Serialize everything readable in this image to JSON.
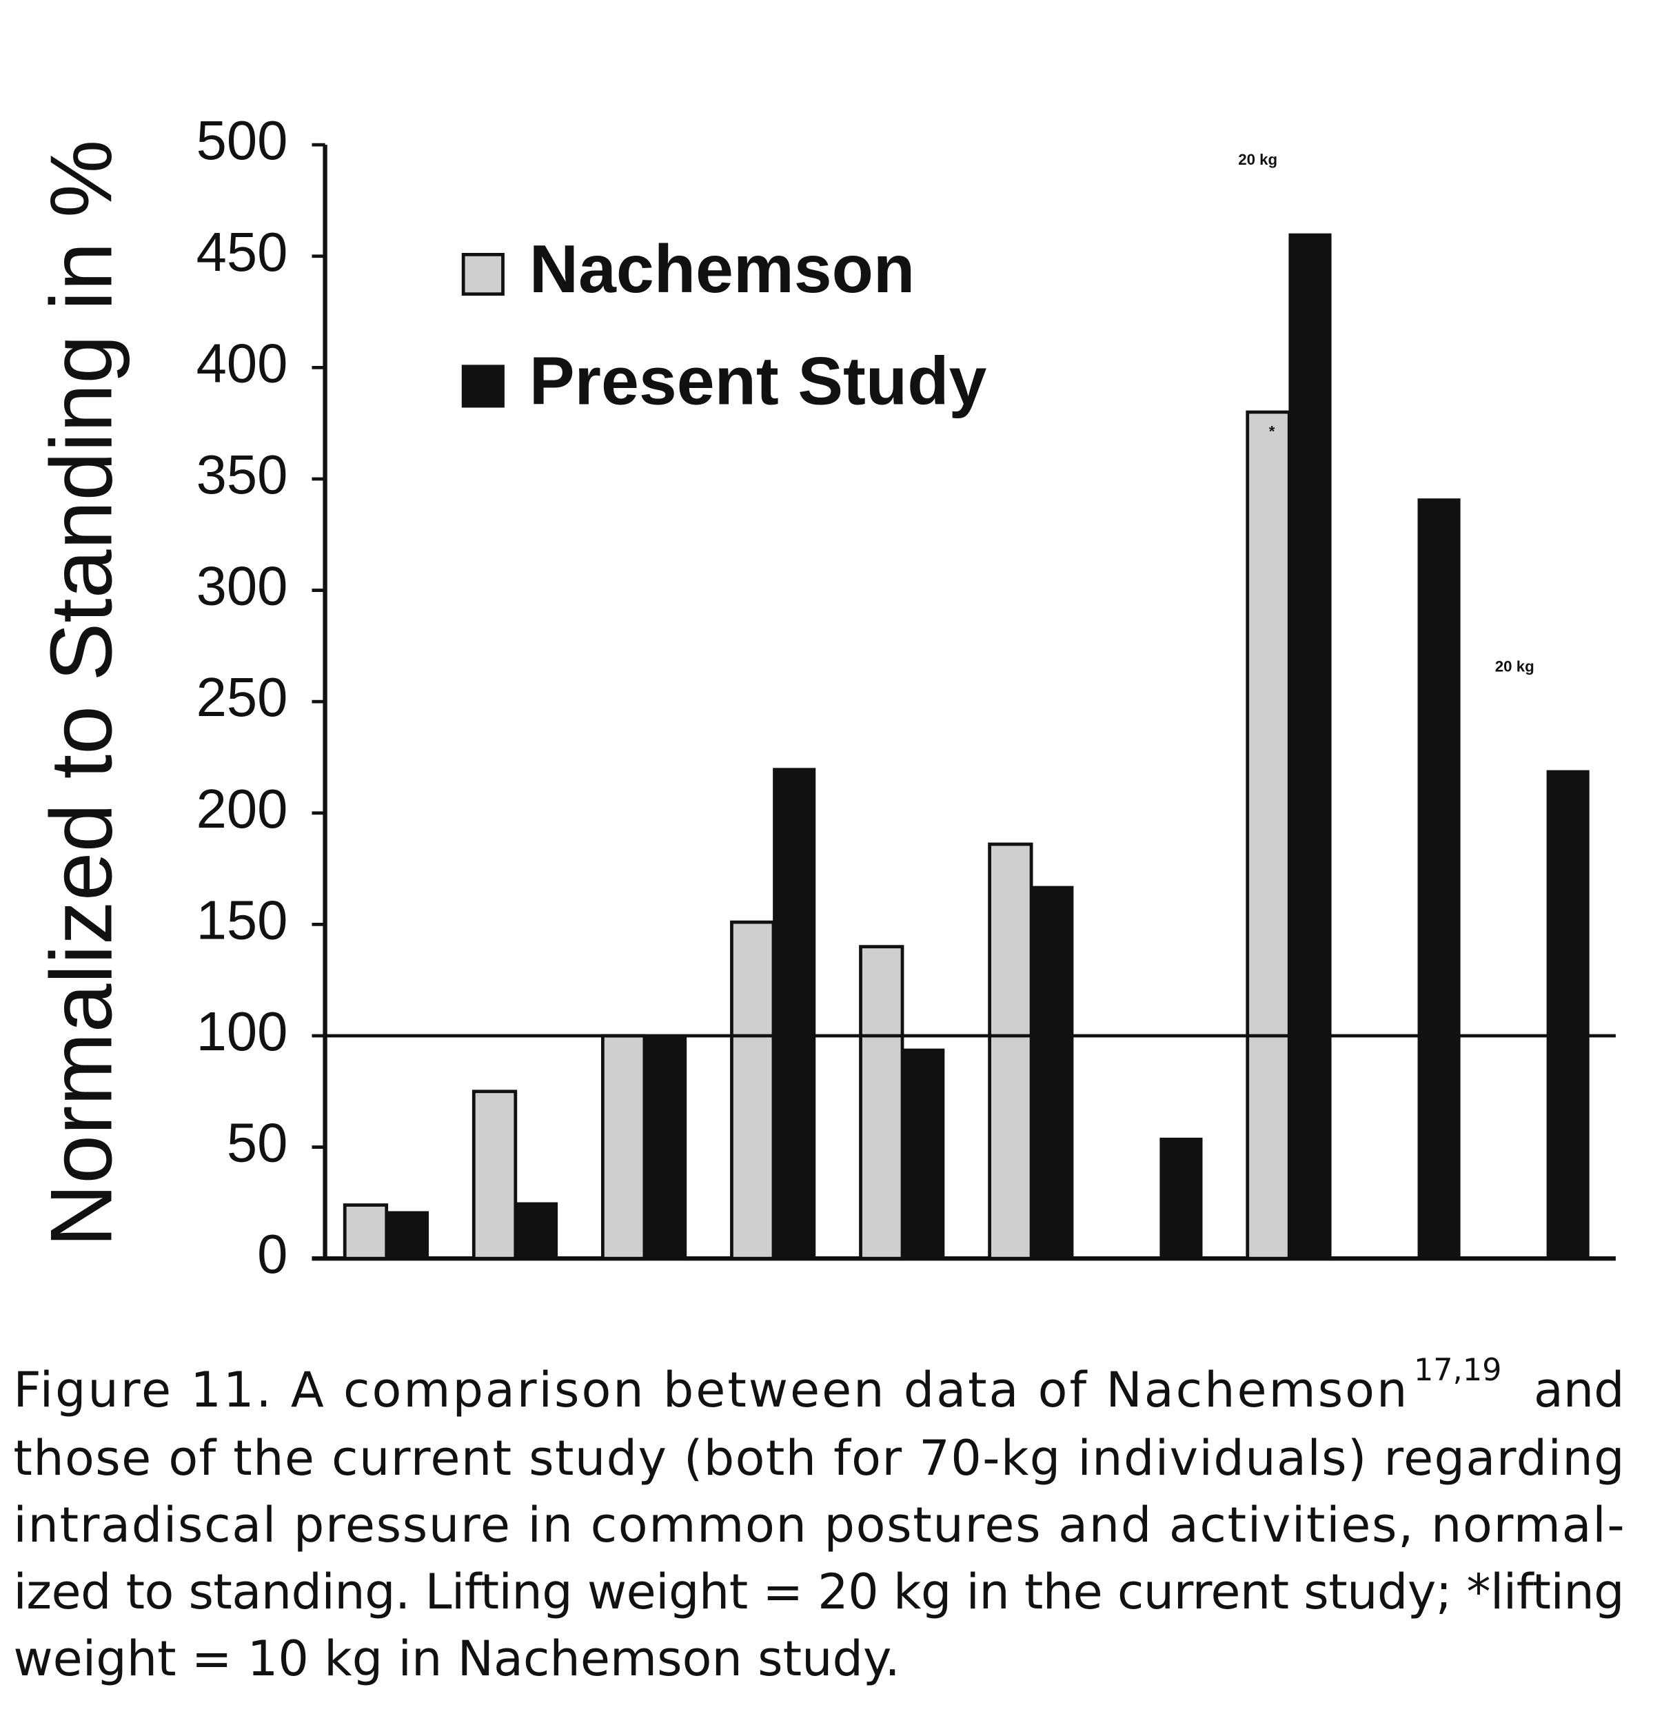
{
  "chart_data": {
    "type": "bar",
    "y_axis_label": "Normalized to Standing in %",
    "categories": [
      null,
      null,
      null,
      null,
      null,
      null,
      null,
      null,
      null,
      null
    ],
    "series": [
      {
        "name": "Nachemson",
        "color": "#cfcfcf",
        "values": [
          24,
          75,
          100,
          151,
          140,
          186,
          null,
          380,
          null,
          null
        ]
      },
      {
        "name": "Present Study",
        "color": "#111111",
        "values": [
          21,
          25,
          100,
          220,
          94,
          167,
          54,
          460,
          341,
          219
        ]
      }
    ],
    "ylim": [
      0,
      500
    ],
    "yticks": [
      0,
      50,
      100,
      150,
      200,
      250,
      300,
      350,
      400,
      450,
      500
    ],
    "reference_line": 100,
    "annotations": [
      "20 kg",
      "*",
      "20 kg"
    ]
  },
  "caption": {
    "line1": "Figure 11. A comparison between data of Nachemson",
    "superscript": "17,19",
    "line1_end": "and",
    "lines": [
      "those of the current study (both for 70-kg individuals) regarding",
      "intradiscal pressure in common postures and activities, normal-",
      "ized to standing. Lifting weight = 20 kg in the current study; *lifting",
      "weight = 10 kg in Nachemson study."
    ]
  }
}
